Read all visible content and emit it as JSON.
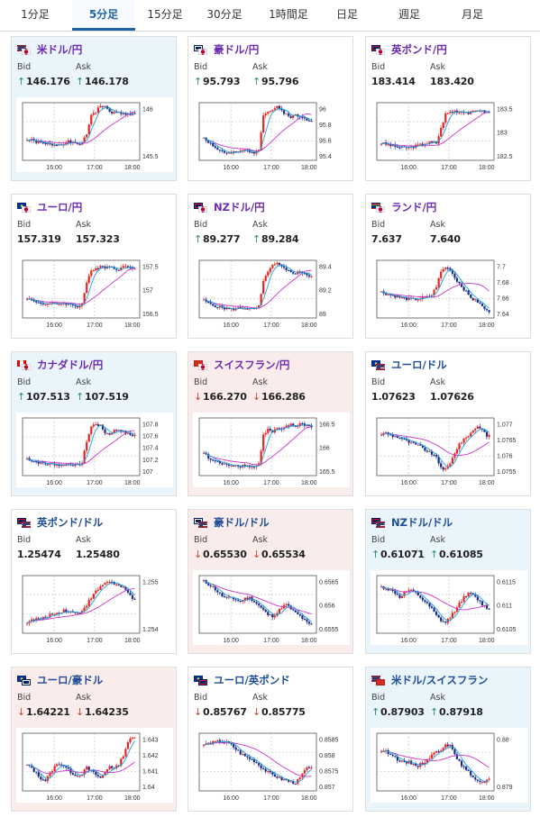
{
  "tabs": [
    {
      "label": "1分足",
      "active": false
    },
    {
      "label": "5分足",
      "active": true
    },
    {
      "label": "15分足",
      "active": false
    },
    {
      "label": "30分足",
      "active": false
    },
    {
      "label": "1時間足",
      "active": false
    },
    {
      "label": "日足",
      "active": false
    },
    {
      "label": "週足",
      "active": false
    },
    {
      "label": "月足",
      "active": false
    }
  ],
  "labels": {
    "bid": "Bid",
    "ask": "Ask"
  },
  "colors": {
    "candle_up": "#e8241f",
    "candle_down": "#1a2a8a",
    "line_fast": "#1aa0d8",
    "line_slow": "#cc33cc",
    "arrow_up": "#2b8a7a",
    "arrow_down": "#c2432f",
    "title_purple": "#6b2bb0",
    "title_blue": "#1f4e96"
  },
  "pairs": [
    {
      "title": "米ドル/円",
      "flags": [
        "us-flag",
        "jp-flag"
      ],
      "bg": "up",
      "bid": "146.176",
      "ask": "146.178",
      "bid_arrow": "up",
      "ask_arrow": "up",
      "chart": {
        "x_labels": [
          "16:00",
          "17:00",
          "18:00"
        ],
        "y_ticks": [
          "146",
          "145.5"
        ],
        "shape": [
          0.35,
          0.35,
          0.32,
          0.3,
          0.28,
          0.28,
          0.27,
          0.28,
          0.3,
          0.32,
          0.3,
          0.28,
          0.3,
          0.45,
          0.8,
          0.85,
          0.95,
          0.92,
          0.85,
          0.82,
          0.83,
          0.8,
          0.82,
          0.8
        ]
      }
    },
    {
      "title": "豪ドル/円",
      "flags": [
        "au-flag",
        "jp-flag"
      ],
      "bg": "neutral",
      "bid": "95.793",
      "ask": "95.796",
      "bid_arrow": "up",
      "ask_arrow": "up",
      "chart": {
        "x_labels": [
          "16:00",
          "17:00",
          "18:00"
        ],
        "y_ticks": [
          "96",
          "95.8",
          "95.6",
          "95.4"
        ],
        "shape": [
          0.4,
          0.32,
          0.26,
          0.18,
          0.16,
          0.12,
          0.12,
          0.14,
          0.15,
          0.18,
          0.16,
          0.14,
          0.2,
          0.8,
          0.84,
          0.88,
          0.92,
          0.86,
          0.8,
          0.76,
          0.78,
          0.75,
          0.72,
          0.7
        ]
      }
    },
    {
      "title": "英ポンド/円",
      "flags": [
        "gb-flag",
        "jp-flag"
      ],
      "bg": "neutral",
      "bid": "183.414",
      "ask": "183.420",
      "bid_arrow": "none",
      "ask_arrow": "none",
      "chart": {
        "x_labels": [
          "16:00",
          "17:00",
          "18:00"
        ],
        "y_ticks": [
          "183.5",
          "183",
          "182.5"
        ],
        "shape": [
          0.3,
          0.28,
          0.26,
          0.24,
          0.22,
          0.22,
          0.22,
          0.24,
          0.26,
          0.28,
          0.3,
          0.32,
          0.3,
          0.55,
          0.8,
          0.84,
          0.86,
          0.84,
          0.86,
          0.82,
          0.84,
          0.88,
          0.85,
          0.83
        ]
      }
    },
    {
      "title": "ユーロ/円",
      "flags": [
        "eu-flag",
        "jp-flag"
      ],
      "bg": "neutral",
      "bid": "157.319",
      "ask": "157.323",
      "bid_arrow": "none",
      "ask_arrow": "none",
      "chart": {
        "x_labels": [
          "16:00",
          "17:00",
          "18:00"
        ],
        "y_ticks": [
          "157.5",
          "157",
          "156.5"
        ],
        "shape": [
          0.35,
          0.3,
          0.28,
          0.26,
          0.24,
          0.24,
          0.24,
          0.25,
          0.26,
          0.24,
          0.22,
          0.2,
          0.25,
          0.62,
          0.8,
          0.85,
          0.92,
          0.88,
          0.9,
          0.86,
          0.85,
          0.88,
          0.9,
          0.88
        ]
      }
    },
    {
      "title": "NZドル/円",
      "flags": [
        "nz-flag",
        "jp-flag"
      ],
      "bg": "neutral",
      "bid": "89.277",
      "ask": "89.284",
      "bid_arrow": "up",
      "ask_arrow": "up",
      "chart": {
        "x_labels": [
          "16:00",
          "17:00",
          "18:00"
        ],
        "y_ticks": [
          "89.4",
          "89.2",
          "89"
        ],
        "shape": [
          0.3,
          0.26,
          0.22,
          0.2,
          0.18,
          0.16,
          0.15,
          0.16,
          0.18,
          0.17,
          0.16,
          0.15,
          0.2,
          0.62,
          0.82,
          0.9,
          0.94,
          0.88,
          0.82,
          0.8,
          0.78,
          0.8,
          0.78,
          0.72
        ]
      }
    },
    {
      "title": "ランド/円",
      "flags": [
        "za-flag",
        "jp-flag"
      ],
      "bg": "neutral",
      "bid": "7.637",
      "ask": "7.640",
      "bid_arrow": "none",
      "ask_arrow": "none",
      "chart": {
        "x_labels": [
          "16:00",
          "17:00",
          "18:00"
        ],
        "y_ticks": [
          "7.7",
          "7.68",
          "7.66",
          "7.64"
        ],
        "shape": [
          0.45,
          0.42,
          0.4,
          0.38,
          0.36,
          0.34,
          0.33,
          0.32,
          0.33,
          0.35,
          0.36,
          0.4,
          0.55,
          0.8,
          0.88,
          0.84,
          0.7,
          0.6,
          0.5,
          0.4,
          0.32,
          0.28,
          0.2,
          0.12
        ]
      }
    },
    {
      "title": "カナダドル/円",
      "flags": [
        "ca-flag",
        "jp-flag"
      ],
      "bg": "up",
      "bid": "107.513",
      "ask": "107.519",
      "bid_arrow": "up",
      "ask_arrow": "up",
      "chart": {
        "x_labels": [
          "16:00",
          "17:00",
          "18:00"
        ],
        "y_ticks": [
          "107.8",
          "107.6",
          "107.4",
          "107.2",
          "107"
        ],
        "shape": [
          0.3,
          0.26,
          0.24,
          0.22,
          0.2,
          0.2,
          0.2,
          0.18,
          0.19,
          0.2,
          0.19,
          0.18,
          0.22,
          0.6,
          0.85,
          0.9,
          0.86,
          0.75,
          0.72,
          0.78,
          0.8,
          0.76,
          0.72,
          0.7
        ]
      }
    },
    {
      "title": "スイスフラン/円",
      "flags": [
        "ch-flag",
        "jp-flag"
      ],
      "bg": "down",
      "bid": "166.270",
      "ask": "166.286",
      "bid_arrow": "down",
      "ask_arrow": "down",
      "chart": {
        "x_labels": [
          "16:00",
          "17:00",
          "18:00"
        ],
        "y_ticks": [
          "166.5",
          "166",
          "165.5"
        ],
        "shape": [
          0.4,
          0.3,
          0.26,
          0.24,
          0.2,
          0.18,
          0.19,
          0.18,
          0.17,
          0.18,
          0.16,
          0.15,
          0.2,
          0.7,
          0.8,
          0.75,
          0.82,
          0.78,
          0.86,
          0.88,
          0.85,
          0.9,
          0.88,
          0.86
        ]
      }
    },
    {
      "title": "ユーロ/ドル",
      "flags": [
        "eu-flag",
        "us-flag"
      ],
      "bg": "neutral",
      "bid": "1.07623",
      "ask": "1.07626",
      "bid_arrow": "none",
      "ask_arrow": "none",
      "chart": {
        "x_labels": [
          "16:00",
          "17:00",
          "18:00"
        ],
        "y_ticks": [
          "1.077",
          "1.0765",
          "1.076",
          "1.0755"
        ],
        "shape": [
          0.72,
          0.74,
          0.7,
          0.68,
          0.66,
          0.62,
          0.58,
          0.55,
          0.52,
          0.48,
          0.42,
          0.38,
          0.3,
          0.15,
          0.1,
          0.2,
          0.4,
          0.55,
          0.62,
          0.7,
          0.78,
          0.86,
          0.8,
          0.7
        ]
      }
    },
    {
      "title": "英ポンド/ドル",
      "flags": [
        "gb-flag",
        "us-flag"
      ],
      "bg": "neutral",
      "bid": "1.25474",
      "ask": "1.25480",
      "bid_arrow": "none",
      "ask_arrow": "none",
      "chart": {
        "x_labels": [
          "16:00",
          "17:00",
          "18:00"
        ],
        "y_ticks": [
          "1.255",
          "1.254"
        ],
        "shape": [
          0.2,
          0.22,
          0.25,
          0.24,
          0.28,
          0.32,
          0.34,
          0.36,
          0.4,
          0.38,
          0.36,
          0.34,
          0.4,
          0.5,
          0.62,
          0.72,
          0.8,
          0.88,
          0.9,
          0.86,
          0.82,
          0.78,
          0.7,
          0.6
        ]
      }
    },
    {
      "title": "豪ドル/ドル",
      "flags": [
        "au-flag",
        "us-flag"
      ],
      "bg": "down",
      "bid": "0.65530",
      "ask": "0.65534",
      "bid_arrow": "down",
      "ask_arrow": "down",
      "chart": {
        "x_labels": [
          "16:00",
          "17:00",
          "18:00"
        ],
        "y_ticks": [
          "0.6565",
          "0.656",
          "0.6555"
        ],
        "shape": [
          0.9,
          0.85,
          0.8,
          0.72,
          0.65,
          0.6,
          0.62,
          0.58,
          0.55,
          0.6,
          0.62,
          0.55,
          0.48,
          0.4,
          0.32,
          0.3,
          0.35,
          0.45,
          0.5,
          0.42,
          0.35,
          0.3,
          0.22,
          0.15
        ]
      }
    },
    {
      "title": "NZドル/ドル",
      "flags": [
        "nz-flag",
        "us-flag"
      ],
      "bg": "up",
      "bid": "0.61071",
      "ask": "0.61085",
      "bid_arrow": "up",
      "ask_arrow": "up",
      "chart": {
        "x_labels": [
          "16:00",
          "17:00",
          "18:00"
        ],
        "y_ticks": [
          "0.6115",
          "0.611",
          "0.6105"
        ],
        "shape": [
          0.8,
          0.78,
          0.74,
          0.7,
          0.62,
          0.7,
          0.74,
          0.72,
          0.66,
          0.58,
          0.5,
          0.42,
          0.3,
          0.22,
          0.18,
          0.28,
          0.4,
          0.52,
          0.62,
          0.7,
          0.66,
          0.58,
          0.5,
          0.44
        ]
      }
    },
    {
      "title": "ユーロ/豪ドル",
      "flags": [
        "eu-flag",
        "au-flag"
      ],
      "bg": "down",
      "bid": "1.64221",
      "ask": "1.64235",
      "bid_arrow": "down",
      "ask_arrow": "down",
      "chart": {
        "x_labels": [
          "16:00",
          "17:00",
          "18:00"
        ],
        "y_ticks": [
          "1.643",
          "1.642",
          "1.641",
          "1.64"
        ],
        "shape": [
          0.45,
          0.4,
          0.3,
          0.22,
          0.18,
          0.3,
          0.42,
          0.48,
          0.44,
          0.36,
          0.3,
          0.26,
          0.3,
          0.4,
          0.34,
          0.28,
          0.22,
          0.32,
          0.44,
          0.38,
          0.46,
          0.62,
          0.85,
          0.92
        ]
      }
    },
    {
      "title": "ユーロ/英ポンド",
      "flags": [
        "eu-flag",
        "gb-flag"
      ],
      "bg": "neutral",
      "bid": "0.85767",
      "ask": "0.85775",
      "bid_arrow": "down",
      "ask_arrow": "down",
      "chart": {
        "x_labels": [
          "16:00",
          "17:00",
          "18:00"
        ],
        "y_ticks": [
          "0.8585",
          "0.858",
          "0.8575",
          "0.857"
        ],
        "shape": [
          0.8,
          0.82,
          0.84,
          0.86,
          0.85,
          0.84,
          0.8,
          0.72,
          0.65,
          0.6,
          0.56,
          0.52,
          0.45,
          0.38,
          0.32,
          0.28,
          0.24,
          0.2,
          0.18,
          0.15,
          0.14,
          0.22,
          0.35,
          0.42
        ]
      }
    },
    {
      "title": "米ドル/スイスフラン",
      "flags": [
        "us-flag",
        "ch-flag"
      ],
      "bg": "up",
      "bid": "0.87903",
      "ask": "0.87918",
      "bid_arrow": "up",
      "ask_arrow": "up",
      "chart": {
        "x_labels": [
          "16:00",
          "17:00",
          "18:00"
        ],
        "y_ticks": [
          "0.88",
          "0.879"
        ],
        "shape": [
          0.7,
          0.68,
          0.65,
          0.58,
          0.52,
          0.48,
          0.5,
          0.46,
          0.44,
          0.48,
          0.55,
          0.62,
          0.68,
          0.72,
          0.82,
          0.78,
          0.62,
          0.5,
          0.4,
          0.32,
          0.25,
          0.18,
          0.14,
          0.2
        ]
      }
    }
  ]
}
